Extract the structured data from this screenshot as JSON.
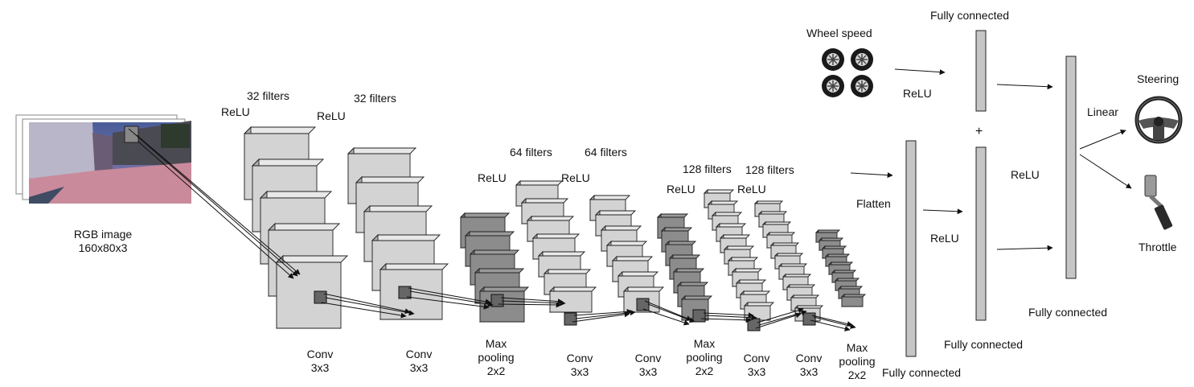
{
  "input": {
    "title": "RGB image",
    "dims": "160x80x3"
  },
  "stage_labels": {
    "conv1": [
      "Conv",
      "3x3"
    ],
    "conv2": [
      "Conv",
      "3x3"
    ],
    "pool1": [
      "Max",
      "pooling",
      "2x2"
    ],
    "conv3": [
      "Conv",
      "3x3"
    ],
    "conv4": [
      "Conv",
      "3x3"
    ],
    "pool2": [
      "Max",
      "pooling",
      "2x2"
    ],
    "conv5": [
      "Conv",
      "3x3"
    ],
    "conv6": [
      "Conv",
      "3x3"
    ],
    "pool3": [
      "Max",
      "pooling",
      "2x2"
    ]
  },
  "filters": {
    "f32a": "32 filters",
    "f32b": "32 filters",
    "f64a": "64 filters",
    "f64b": "64 filters",
    "f128a": "128 filters",
    "f128b": "128 filters"
  },
  "relu": "ReLU",
  "flatten": "Flatten",
  "plus": "+",
  "linear": "Linear",
  "wheel_speed": "Wheel speed",
  "fully_connected": "Fully connected",
  "outputs": {
    "steering": "Steering",
    "throttle": "Throttle"
  },
  "colors": {
    "light_block": "#d3d3d3",
    "dark_block": "#8c8c8c",
    "fc_bar": "#c6c6c6",
    "kernel": "#666666"
  },
  "icons": [
    "tire-icon",
    "steering-wheel-icon",
    "throttle-pedal-icon"
  ]
}
